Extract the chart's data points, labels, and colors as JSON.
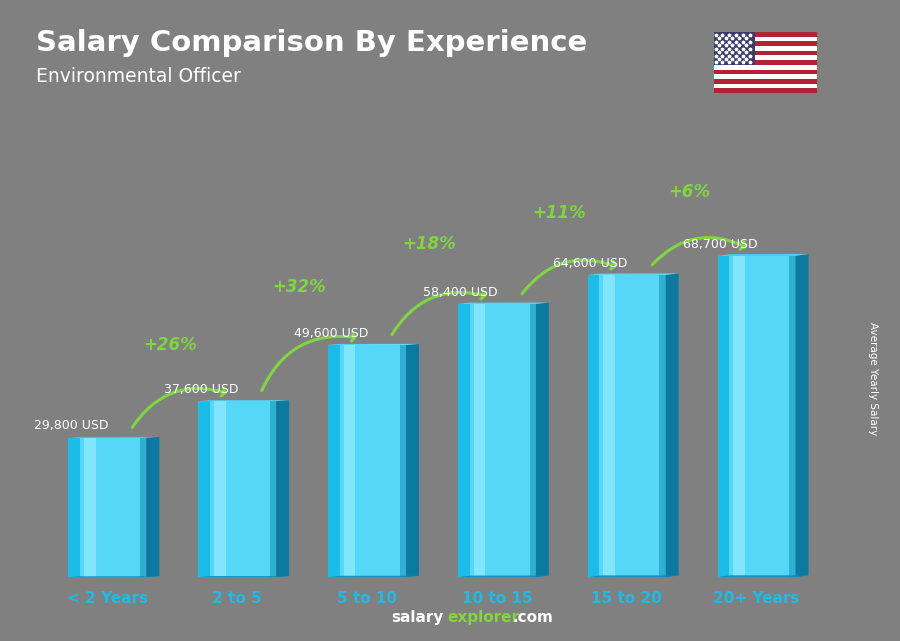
{
  "title": "Salary Comparison By Experience",
  "subtitle": "Environmental Officer",
  "ylabel": "Average Yearly Salary",
  "categories": [
    "< 2 Years",
    "2 to 5",
    "5 to 10",
    "10 to 15",
    "15 to 20",
    "20+ Years"
  ],
  "values": [
    29800,
    37600,
    49600,
    58400,
    64600,
    68700
  ],
  "labels": [
    "29,800 USD",
    "37,600 USD",
    "49,600 USD",
    "58,400 USD",
    "64,600 USD",
    "68,700 USD"
  ],
  "pct_changes": [
    "+26%",
    "+32%",
    "+18%",
    "+11%",
    "+6%"
  ],
  "bar_color_face": "#1BBDE8",
  "bar_color_light": "#55D8F8",
  "bar_color_highlight": "#A0EEFF",
  "bar_color_dark": "#0B7AA0",
  "bar_color_top": "#5CE0FF",
  "bar_color_top_dark": "#0E8AB5",
  "background_color": "#808080",
  "title_color": "#FFFFFF",
  "subtitle_color": "#FFFFFF",
  "label_color": "#FFFFFF",
  "pct_color": "#7FD63F",
  "xticklabel_color": "#1BBDE8",
  "ylim": [
    0,
    85000
  ],
  "figsize": [
    9.0,
    6.41
  ],
  "dpi": 100
}
